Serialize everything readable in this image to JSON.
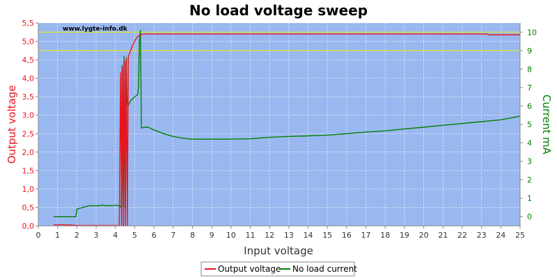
{
  "chart_data": {
    "type": "line",
    "title": "No load voltage sweep",
    "xlabel": "Input voltage",
    "ylabel_left": "Output voltage",
    "ylabel_right": "Current mA",
    "watermark": "www.lygte-info.dk",
    "xlim": [
      0,
      25
    ],
    "ylim_left": [
      0,
      5.5
    ],
    "ylim_right": [
      -0.5,
      10.5
    ],
    "x_ticks": [
      0,
      1,
      2,
      3,
      4,
      5,
      6,
      7,
      8,
      9,
      10,
      11,
      12,
      13,
      14,
      15,
      16,
      17,
      18,
      19,
      20,
      21,
      22,
      23,
      24,
      25
    ],
    "y_ticks_left": [
      "0,0",
      "0,5",
      "1,0",
      "1,5",
      "2,0",
      "2,5",
      "3,0",
      "3,5",
      "4,0",
      "4,5",
      "5,0",
      "5,5"
    ],
    "y_ticks_right": [
      0,
      1,
      2,
      3,
      4,
      5,
      6,
      7,
      8,
      9,
      10
    ],
    "grid": true,
    "legend_position": "bottom",
    "reference_lines_left": [
      5.25,
      4.75
    ],
    "series": [
      {
        "name": "Output voltage",
        "axis": "left",
        "color": "#e8141e",
        "x": [
          0.8,
          1.2,
          1.8,
          2.0,
          3.0,
          4.0,
          4.2,
          4.27,
          4.32,
          4.37,
          4.42,
          4.47,
          4.52,
          4.57,
          4.62,
          4.67,
          4.72,
          4.9,
          5.1,
          5.2,
          5.3,
          5.5,
          6,
          10,
          15,
          20,
          23.3,
          23.4,
          25
        ],
        "y": [
          0.03,
          0.03,
          0.02,
          0.01,
          0.01,
          0.01,
          0.01,
          4.15,
          0.0,
          4.3,
          0.0,
          4.45,
          0.0,
          4.55,
          0.0,
          4.6,
          4.65,
          4.9,
          5.1,
          5.15,
          5.18,
          5.2,
          5.2,
          5.2,
          5.2,
          5.2,
          5.2,
          5.18,
          5.18
        ]
      },
      {
        "name": "No load current",
        "axis": "right",
        "color": "#008000",
        "x": [
          0.8,
          1.0,
          1.5,
          1.95,
          2.0,
          2.3,
          2.5,
          2.7,
          3.0,
          3.3,
          3.5,
          3.8,
          4.0,
          4.2,
          4.3,
          4.35,
          4.4,
          4.45,
          4.5,
          4.55,
          4.6,
          4.65,
          4.7,
          4.8,
          5.0,
          5.15,
          5.2,
          5.25,
          5.3,
          5.35,
          5.5,
          5.7,
          6.0,
          6.5,
          7.0,
          7.5,
          8.0,
          9.0,
          10.0,
          11.0,
          12.0,
          13.0,
          14.0,
          15.0,
          16.0,
          17.0,
          18.0,
          19.0,
          20.0,
          21.0,
          22.0,
          23.0,
          24.0,
          25.0
        ],
        "y": [
          0.0,
          0.0,
          0.0,
          0.0,
          0.4,
          0.5,
          0.55,
          0.6,
          0.58,
          0.62,
          0.6,
          0.6,
          0.62,
          0.6,
          0.5,
          8.2,
          0.55,
          8.7,
          0.5,
          8.5,
          6.5,
          6.0,
          6.1,
          6.3,
          6.5,
          6.6,
          7.0,
          9.6,
          10.1,
          4.8,
          4.85,
          4.85,
          4.7,
          4.5,
          4.35,
          4.25,
          4.2,
          4.2,
          4.2,
          4.22,
          4.3,
          4.35,
          4.38,
          4.42,
          4.5,
          4.58,
          4.65,
          4.75,
          4.85,
          4.95,
          5.05,
          5.15,
          5.25,
          5.45
        ]
      }
    ]
  }
}
